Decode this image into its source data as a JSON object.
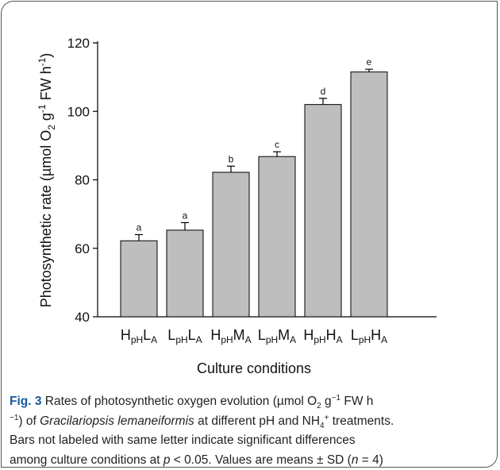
{
  "chart_data": {
    "type": "bar",
    "y_label": [
      "Photosynthetic rate (µmol O",
      "2",
      " g",
      "-1",
      " FW h",
      "-1",
      ")"
    ],
    "x_label": "Culture conditions",
    "categories": [
      [
        "H",
        "pH",
        "L",
        "A"
      ],
      [
        "L",
        "pH",
        "L",
        "A"
      ],
      [
        "H",
        "pH",
        "M",
        "A"
      ],
      [
        "L",
        "pH",
        "M",
        "A"
      ],
      [
        "H",
        "pH",
        "H",
        "A"
      ],
      [
        "L",
        "pH",
        "H",
        "A"
      ]
    ],
    "values": [
      62.2,
      65.3,
      82.2,
      86.8,
      102,
      111.5
    ],
    "errors": [
      1.8,
      2.2,
      1.8,
      1.4,
      1.8,
      0.8
    ],
    "letters": [
      "a",
      "a",
      "b",
      "c",
      "d",
      "e"
    ],
    "color": "#bebebe",
    "ylim": [
      40,
      120
    ],
    "yticks": [
      40,
      60,
      80,
      100,
      120
    ]
  },
  "caption": [
    [
      "Fig. 3",
      " Rates of photosynthetic oxygen evolution (µmol O",
      "2",
      " g",
      "−1",
      " FW h"
    ],
    [
      "−1",
      ") of ",
      "Gracilariopsis lemaneiformis",
      " at different pH and NH",
      "4",
      "+",
      " treatments."
    ],
    [
      "Bars not labeled with same letter indicate significant differences"
    ],
    [
      "among culture conditions at ",
      "p",
      " < 0.05. Values are means ± SD (",
      "n",
      " = 4)"
    ]
  ]
}
